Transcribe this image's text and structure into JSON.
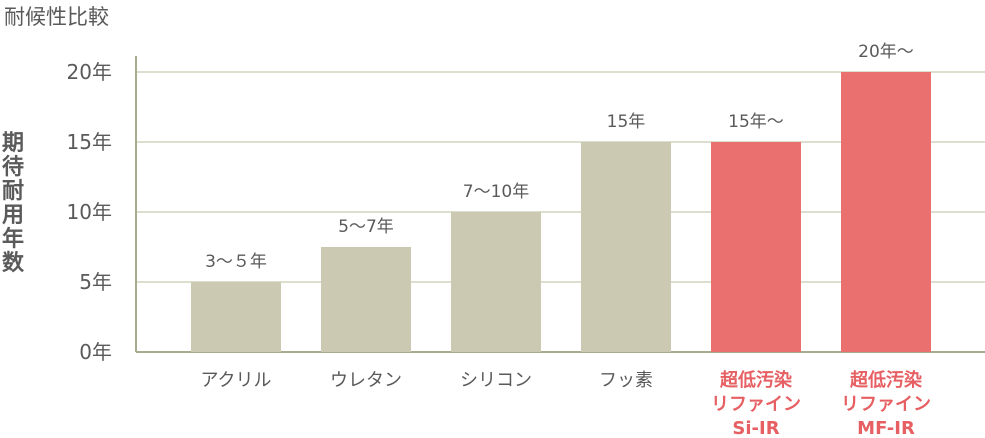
{
  "chart_data": {
    "type": "bar",
    "title": "耐候性比較",
    "ylabel": "期待耐用年数",
    "ylim": [
      0,
      20
    ],
    "yticks": [
      0,
      5,
      10,
      15,
      20
    ],
    "ytick_labels": [
      "0年",
      "5年",
      "10年",
      "15年",
      "20年"
    ],
    "grid": true,
    "categories": [
      "アクリル",
      "ウレタン",
      "シリコン",
      "フッ素",
      "超低汚染\nリファイン\nSi-IR",
      "超低汚染\nリファイン\nMF-IR"
    ],
    "values": [
      5,
      7.5,
      10,
      15,
      15,
      20
    ],
    "data_labels": [
      "3～５年",
      "5～7年",
      "7～10年",
      "15年",
      "15年～",
      "20年～"
    ],
    "highlight": [
      false,
      false,
      false,
      false,
      true,
      true
    ],
    "colors": {
      "bar": "#ccc9b2",
      "highlight_bar": "#ea7070",
      "highlight_text": "#e65f62",
      "grid": "#c8c9b0",
      "axis": "#a9ab8e"
    }
  }
}
